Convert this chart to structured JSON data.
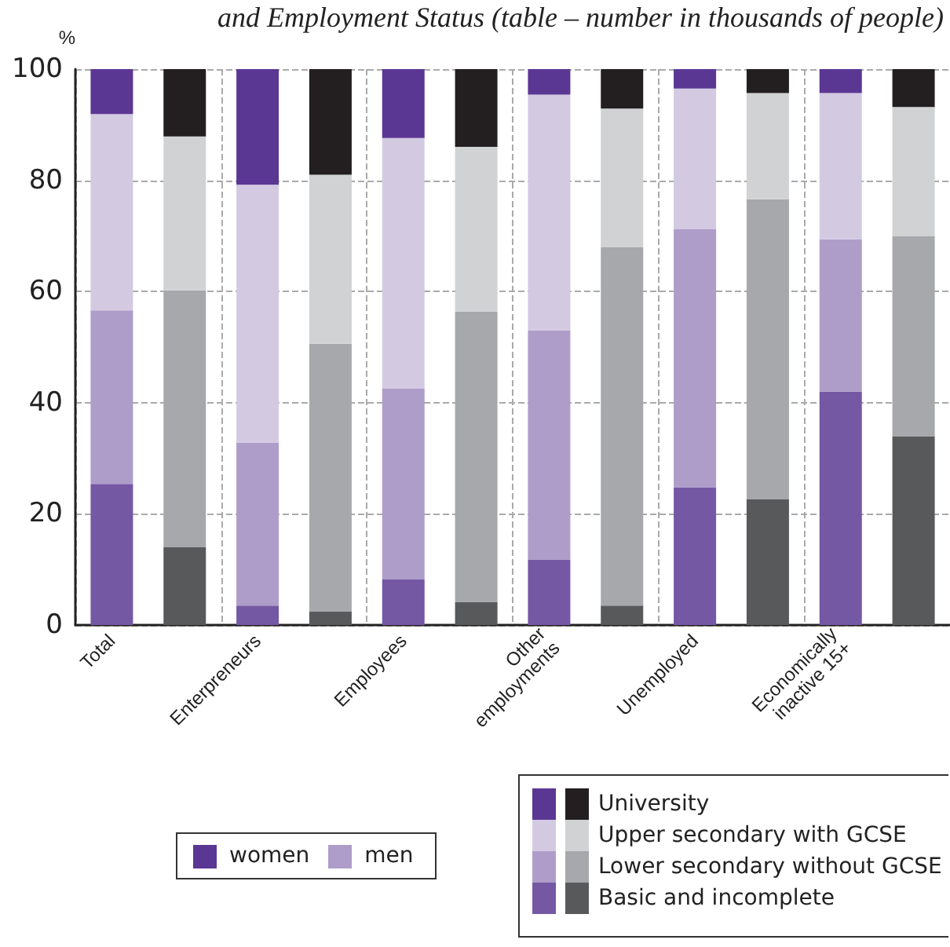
{
  "chart_data": {
    "type": "bar",
    "title": "and Employment Status (table – number in thousands of people)",
    "ylabel": "%",
    "categories": [
      "Total",
      null,
      "Enterpreneurs",
      null,
      "Employees",
      null,
      "Other\nemployments",
      null,
      "Unemployed",
      null,
      "Economically\ninactive 15+",
      null
    ],
    "stacked": true,
    "ylim": [
      0,
      100
    ],
    "yticks": [
      0,
      20,
      40,
      60,
      80,
      100
    ],
    "grid": true,
    "legend": "bottom",
    "annotations": [
      "women",
      "men"
    ],
    "series": [
      {
        "name": "Basic and incomplete",
        "colors": [
          "#7558a4",
          "#58595b",
          "#7558a4",
          "#58595b",
          "#7558a4",
          "#58595b",
          "#7558a4",
          "#58595b",
          "#7558a4",
          "#58595b",
          "#7558a4",
          "#58595b"
        ],
        "values": [
          25.4,
          14.0,
          3.5,
          2.4,
          8.2,
          4.1,
          11.8,
          3.5,
          24.8,
          22.6,
          42.0,
          33.9
        ]
      },
      {
        "name": "Lower secondary without GCSE",
        "colors": [
          "#ae9dc9",
          "#a7a8ab",
          "#ae9dc9",
          "#a7a8ab",
          "#ae9dc9",
          "#a7a8ab",
          "#ae9dc9",
          "#a7a8ab",
          "#ae9dc9",
          "#a7a8ab",
          "#ae9dc9",
          "#a7a8ab"
        ],
        "values": [
          31.2,
          46.2,
          29.3,
          48.2,
          34.3,
          52.3,
          41.2,
          64.5,
          46.4,
          54.0,
          27.4,
          36.0
        ]
      },
      {
        "name": "Upper secondary with GCSE",
        "colors": [
          "#d3cae2",
          "#d1d2d4",
          "#d3cae2",
          "#d1d2d4",
          "#d3cae2",
          "#d1d2d4",
          "#d3cae2",
          "#d1d2d4",
          "#d3cae2",
          "#d1d2d4",
          "#d3cae2",
          "#d1d2d4"
        ],
        "values": [
          35.3,
          27.7,
          46.4,
          30.4,
          45.1,
          29.6,
          42.4,
          24.9,
          25.3,
          19.1,
          26.3,
          23.3
        ]
      },
      {
        "name": "University",
        "colors": [
          "#5b3794",
          "#231f20",
          "#5b3794",
          "#231f20",
          "#5b3794",
          "#231f20",
          "#5b3794",
          "#231f20",
          "#5b3794",
          "#231f20",
          "#5b3794",
          "#231f20"
        ],
        "values": [
          8.1,
          12.1,
          20.8,
          19.0,
          12.4,
          14.0,
          4.6,
          7.1,
          3.5,
          4.3,
          4.3,
          6.8
        ]
      }
    ]
  }
}
